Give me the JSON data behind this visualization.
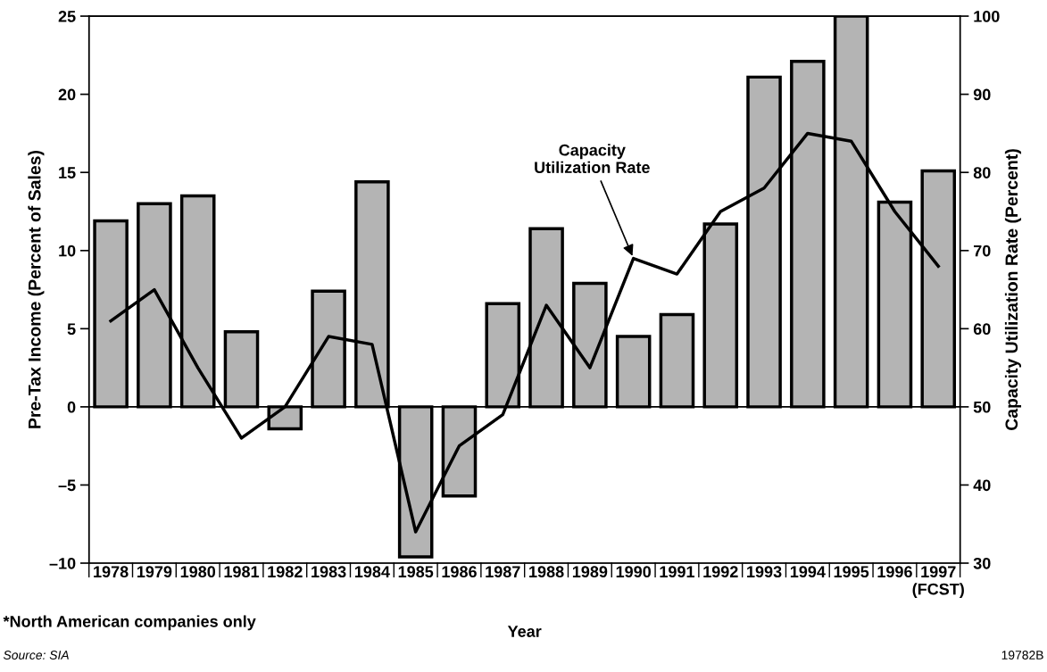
{
  "chart_data": {
    "type": "bar",
    "categories": [
      "1978",
      "1979",
      "1980",
      "1981",
      "1982",
      "1983",
      "1984",
      "1985",
      "1986",
      "1987",
      "1988",
      "1989",
      "1990",
      "1991",
      "1992",
      "1993",
      "1994",
      "1995",
      "1996",
      "1997\n(FCST)"
    ],
    "series": [
      {
        "color": "#b4b4b4",
        "values": [
          11.9,
          13.0,
          13.5,
          4.8,
          -1.4,
          7.4,
          14.4,
          -9.6,
          -5.7,
          6.6,
          11.4,
          7.9,
          4.5,
          5.9,
          11.7,
          21.1,
          22.1,
          25.0,
          13.1,
          15.1
        ]
      },
      {
        "type": "line",
        "axis": "y2",
        "name": "Capacity\nUtilization Rate",
        "color": "#000000",
        "values": [
          61,
          65,
          55,
          46,
          50,
          59,
          58,
          34,
          45,
          49,
          63,
          55,
          69,
          67,
          75,
          78,
          85,
          84,
          75,
          68
        ]
      }
    ],
    "xlabel": "Year",
    "ylabel": "Pre-Tax Income (Percent of Sales)",
    "y2label": "Capacity Utilization Rate (Percent)",
    "ylim": [
      -10,
      25
    ],
    "yticks": [
      {
        "value": -10,
        "label": "–10"
      },
      {
        "value": -5,
        "label": "–5"
      },
      0,
      5,
      10,
      15,
      20,
      25
    ],
    "y2lim": [
      30,
      100
    ],
    "y2ticks": [
      30,
      40,
      50,
      60,
      70,
      80,
      90,
      100
    ],
    "grid": false,
    "ref_lines": [
      {
        "axis": "y",
        "value": 0
      }
    ],
    "legend": false,
    "marker": "none",
    "line_style": "solid",
    "annotations": [
      "*North American companies only",
      "Source: SIA",
      "19782B"
    ]
  }
}
